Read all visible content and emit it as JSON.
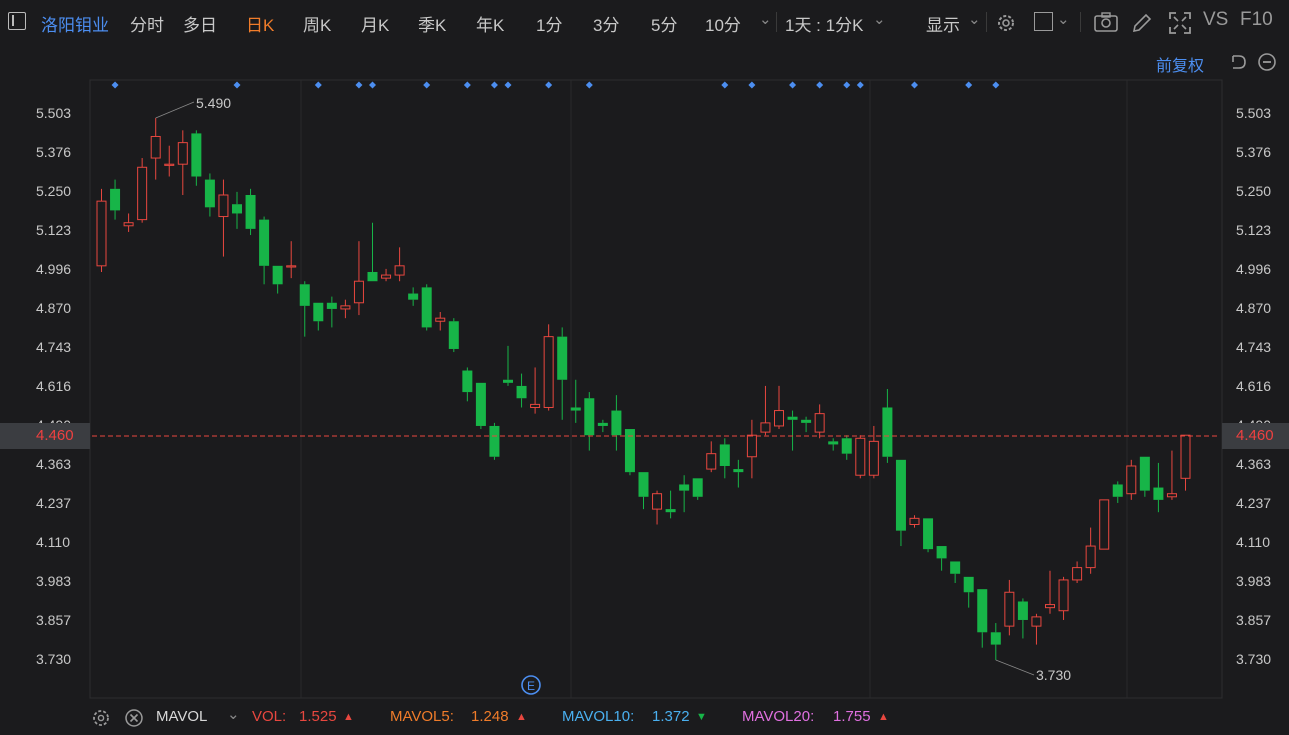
{
  "header": {
    "stock_name": "洛阳钼业",
    "tabs": [
      "分时",
      "多日",
      "日K",
      "周K",
      "月K",
      "季K",
      "年K",
      "1分",
      "3分",
      "5分",
      "10分"
    ],
    "active_tab": "日K",
    "period_select": "1天 : 1分K",
    "display_label": "显示",
    "vs_label": "VS",
    "f10_label": "F10"
  },
  "subbar": {
    "adjust_label": "前复权"
  },
  "axis": {
    "labels": [
      "5.503",
      "5.376",
      "5.250",
      "5.123",
      "4.996",
      "4.870",
      "4.743",
      "4.616",
      "4.490",
      "4.363",
      "4.237",
      "4.110",
      "3.983",
      "3.857",
      "3.730"
    ],
    "current_price": "4.460"
  },
  "annotations": {
    "high": "5.490",
    "low": "3.730",
    "event_marker": "E"
  },
  "indicator": {
    "name": "MAVOL",
    "vol_label": "VOL:",
    "vol_value": "1.525",
    "mavol5_label": "MAVOL5:",
    "mavol5_value": "1.248",
    "mavol10_label": "MAVOL10:",
    "mavol10_value": "1.372",
    "mavol20_label": "MAVOL20:",
    "mavol20_value": "1.755"
  },
  "colors": {
    "up": "#e8473f",
    "down": "#17b548",
    "accent": "#4c8ef0",
    "active_tab": "#f07c2a",
    "mavol5": "#f07c2a",
    "mavol10": "#4ab0f0",
    "mavol20": "#e070e0"
  },
  "chart_data": {
    "type": "candlestick",
    "yrange": [
      3.73,
      5.503
    ],
    "candles": [
      {
        "o": 5.01,
        "c": 5.22,
        "h": 5.26,
        "l": 4.99
      },
      {
        "o": 5.26,
        "c": 5.19,
        "h": 5.29,
        "l": 5.16
      },
      {
        "o": 5.14,
        "c": 5.15,
        "h": 5.18,
        "l": 5.12
      },
      {
        "o": 5.16,
        "c": 5.33,
        "h": 5.36,
        "l": 5.15
      },
      {
        "o": 5.36,
        "c": 5.43,
        "h": 5.49,
        "l": 5.29
      },
      {
        "o": 5.34,
        "c": 5.34,
        "h": 5.4,
        "l": 5.3
      },
      {
        "o": 5.34,
        "c": 5.41,
        "h": 5.45,
        "l": 5.24
      },
      {
        "o": 5.44,
        "c": 5.3,
        "h": 5.45,
        "l": 5.27
      },
      {
        "o": 5.29,
        "c": 5.2,
        "h": 5.31,
        "l": 5.17
      },
      {
        "o": 5.17,
        "c": 5.24,
        "h": 5.29,
        "l": 5.04
      },
      {
        "o": 5.21,
        "c": 5.18,
        "h": 5.25,
        "l": 5.13
      },
      {
        "o": 5.24,
        "c": 5.13,
        "h": 5.26,
        "l": 5.11
      },
      {
        "o": 5.16,
        "c": 5.01,
        "h": 5.17,
        "l": 4.95
      },
      {
        "o": 5.01,
        "c": 4.95,
        "h": 5.01,
        "l": 4.92
      },
      {
        "o": 5.01,
        "c": 5.01,
        "h": 5.09,
        "l": 4.97
      },
      {
        "o": 4.95,
        "c": 4.88,
        "h": 4.96,
        "l": 4.78
      },
      {
        "o": 4.89,
        "c": 4.83,
        "h": 4.89,
        "l": 4.8
      },
      {
        "o": 4.89,
        "c": 4.87,
        "h": 4.91,
        "l": 4.81
      },
      {
        "o": 4.87,
        "c": 4.88,
        "h": 4.9,
        "l": 4.84
      },
      {
        "o": 4.89,
        "c": 4.96,
        "h": 5.09,
        "l": 4.85
      },
      {
        "o": 4.99,
        "c": 4.96,
        "h": 5.15,
        "l": 4.96
      },
      {
        "o": 4.97,
        "c": 4.98,
        "h": 5.0,
        "l": 4.96
      },
      {
        "o": 4.98,
        "c": 5.01,
        "h": 5.07,
        "l": 4.96
      },
      {
        "o": 4.92,
        "c": 4.9,
        "h": 4.94,
        "l": 4.88
      },
      {
        "o": 4.94,
        "c": 4.81,
        "h": 4.95,
        "l": 4.8
      },
      {
        "o": 4.83,
        "c": 4.84,
        "h": 4.86,
        "l": 4.8
      },
      {
        "o": 4.83,
        "c": 4.74,
        "h": 4.84,
        "l": 4.73
      },
      {
        "o": 4.67,
        "c": 4.6,
        "h": 4.68,
        "l": 4.57
      },
      {
        "o": 4.63,
        "c": 4.49,
        "h": 4.63,
        "l": 4.48
      },
      {
        "o": 4.49,
        "c": 4.39,
        "h": 4.5,
        "l": 4.38
      },
      {
        "o": 4.64,
        "c": 4.63,
        "h": 4.75,
        "l": 4.62
      },
      {
        "o": 4.62,
        "c": 4.58,
        "h": 4.66,
        "l": 4.55
      },
      {
        "o": 4.55,
        "c": 4.56,
        "h": 4.68,
        "l": 4.53
      },
      {
        "o": 4.55,
        "c": 4.78,
        "h": 4.82,
        "l": 4.54
      },
      {
        "o": 4.78,
        "c": 4.64,
        "h": 4.81,
        "l": 4.51
      },
      {
        "o": 4.55,
        "c": 4.54,
        "h": 4.64,
        "l": 4.5
      },
      {
        "o": 4.58,
        "c": 4.46,
        "h": 4.6,
        "l": 4.41
      },
      {
        "o": 4.5,
        "c": 4.49,
        "h": 4.51,
        "l": 4.47
      },
      {
        "o": 4.54,
        "c": 4.46,
        "h": 4.59,
        "l": 4.41
      },
      {
        "o": 4.48,
        "c": 4.34,
        "h": 4.48,
        "l": 4.33
      },
      {
        "o": 4.34,
        "c": 4.26,
        "h": 4.34,
        "l": 4.22
      },
      {
        "o": 4.22,
        "c": 4.27,
        "h": 4.28,
        "l": 4.17
      },
      {
        "o": 4.22,
        "c": 4.21,
        "h": 4.28,
        "l": 4.19
      },
      {
        "o": 4.3,
        "c": 4.28,
        "h": 4.33,
        "l": 4.21
      },
      {
        "o": 4.32,
        "c": 4.26,
        "h": 4.32,
        "l": 4.25
      },
      {
        "o": 4.35,
        "c": 4.4,
        "h": 4.44,
        "l": 4.34
      },
      {
        "o": 4.43,
        "c": 4.36,
        "h": 4.45,
        "l": 4.32
      },
      {
        "o": 4.35,
        "c": 4.34,
        "h": 4.38,
        "l": 4.29
      },
      {
        "o": 4.39,
        "c": 4.46,
        "h": 4.51,
        "l": 4.32
      },
      {
        "o": 4.47,
        "c": 4.5,
        "h": 4.62,
        "l": 4.46
      },
      {
        "o": 4.49,
        "c": 4.54,
        "h": 4.62,
        "l": 4.48
      },
      {
        "o": 4.52,
        "c": 4.51,
        "h": 4.54,
        "l": 4.41
      },
      {
        "o": 4.51,
        "c": 4.5,
        "h": 4.52,
        "l": 4.47
      },
      {
        "o": 4.47,
        "c": 4.53,
        "h": 4.56,
        "l": 4.45
      },
      {
        "o": 4.44,
        "c": 4.43,
        "h": 4.45,
        "l": 4.41
      },
      {
        "o": 4.45,
        "c": 4.4,
        "h": 4.46,
        "l": 4.38
      },
      {
        "o": 4.33,
        "c": 4.45,
        "h": 4.46,
        "l": 4.32
      },
      {
        "o": 4.33,
        "c": 4.44,
        "h": 4.49,
        "l": 4.32
      },
      {
        "o": 4.55,
        "c": 4.39,
        "h": 4.61,
        "l": 4.37
      },
      {
        "o": 4.38,
        "c": 4.15,
        "h": 4.38,
        "l": 4.1
      },
      {
        "o": 4.17,
        "c": 4.19,
        "h": 4.2,
        "l": 4.16
      },
      {
        "o": 4.19,
        "c": 4.09,
        "h": 4.19,
        "l": 4.08
      },
      {
        "o": 4.1,
        "c": 4.06,
        "h": 4.1,
        "l": 4.02
      },
      {
        "o": 4.05,
        "c": 4.01,
        "h": 4.05,
        "l": 3.98
      },
      {
        "o": 4.0,
        "c": 3.95,
        "h": 4.0,
        "l": 3.9
      },
      {
        "o": 3.96,
        "c": 3.82,
        "h": 3.96,
        "l": 3.77
      },
      {
        "o": 3.82,
        "c": 3.78,
        "h": 3.85,
        "l": 3.73
      },
      {
        "o": 3.84,
        "c": 3.95,
        "h": 3.99,
        "l": 3.81
      },
      {
        "o": 3.92,
        "c": 3.86,
        "h": 3.93,
        "l": 3.8
      },
      {
        "o": 3.84,
        "c": 3.87,
        "h": 3.88,
        "l": 3.78
      },
      {
        "o": 3.9,
        "c": 3.91,
        "h": 4.02,
        "l": 3.88
      },
      {
        "o": 3.89,
        "c": 3.99,
        "h": 4.0,
        "l": 3.86
      },
      {
        "o": 3.99,
        "c": 4.03,
        "h": 4.05,
        "l": 3.98
      },
      {
        "o": 4.03,
        "c": 4.1,
        "h": 4.16,
        "l": 4.01
      },
      {
        "o": 4.09,
        "c": 4.25,
        "h": 4.25,
        "l": 4.09
      },
      {
        "o": 4.3,
        "c": 4.26,
        "h": 4.31,
        "l": 4.24
      },
      {
        "o": 4.27,
        "c": 4.36,
        "h": 4.38,
        "l": 4.25
      },
      {
        "o": 4.39,
        "c": 4.28,
        "h": 4.39,
        "l": 4.26
      },
      {
        "o": 4.29,
        "c": 4.25,
        "h": 4.37,
        "l": 4.21
      },
      {
        "o": 4.26,
        "c": 4.27,
        "h": 4.41,
        "l": 4.25
      },
      {
        "o": 4.32,
        "c": 4.46,
        "h": 4.46,
        "l": 4.28
      }
    ],
    "event_dot_candles": [
      1,
      10,
      16,
      19,
      20,
      24,
      27,
      29,
      30,
      33,
      36,
      46,
      48,
      51,
      53,
      55,
      56,
      60,
      64,
      66
    ],
    "high_candle": 4,
    "low_candle": 66,
    "current_price": 4.46
  }
}
